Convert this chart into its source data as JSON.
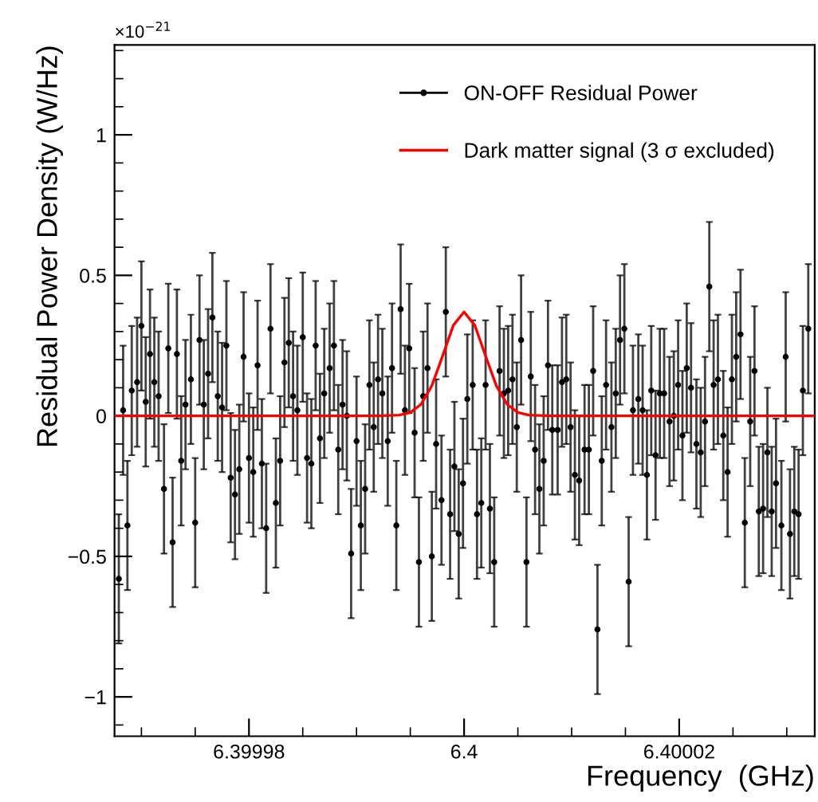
{
  "chart_data": {
    "type": "scatter",
    "xlabel": "Frequency  (GHz)",
    "ylabel": "Residual Power Density (W/Hz)",
    "annotations": [
      "×10$^{−21}$"
    ],
    "xlim": [
      6.3999675,
      6.4000326
    ],
    "ylim": [
      -1.14,
      1.32
    ],
    "xticks": [
      6.39998,
      6.4,
      6.40002
    ],
    "yticks": [
      {
        "value": -1,
        "label": "−1"
      },
      {
        "value": -0.5,
        "label": "−0.5"
      },
      0,
      0.5,
      1
    ],
    "legend": "top right",
    "grid": false,
    "marker": "circle",
    "series": [
      {
        "name": "ON-OFF Residual Power",
        "color": "#000000",
        "x": [
          6.3999679,
          6.3999683,
          6.3999687,
          6.3999691,
          6.3999696,
          6.39997,
          6.3999704,
          6.3999708,
          6.3999712,
          6.3999716,
          6.3999721,
          6.3999725,
          6.3999729,
          6.3999733,
          6.3999737,
          6.3999741,
          6.3999746,
          6.399975,
          6.3999754,
          6.3999758,
          6.3999762,
          6.3999766,
          6.3999771,
          6.3999775,
          6.3999779,
          6.3999783,
          6.3999787,
          6.3999791,
          6.3999795,
          6.39998,
          6.3999804,
          6.3999808,
          6.3999812,
          6.3999816,
          6.399982,
          6.3999825,
          6.3999829,
          6.3999833,
          6.3999837,
          6.3999841,
          6.3999845,
          6.399985,
          6.3999854,
          6.3999858,
          6.3999862,
          6.3999866,
          6.399987,
          6.3999875,
          6.3999879,
          6.3999883,
          6.3999887,
          6.3999891,
          6.3999895,
          6.39999,
          6.3999904,
          6.3999908,
          6.3999912,
          6.3999916,
          6.399992,
          6.3999924,
          6.3999929,
          6.3999933,
          6.3999937,
          6.3999941,
          6.3999945,
          6.3999949,
          6.3999954,
          6.3999958,
          6.3999962,
          6.3999966,
          6.399997,
          6.3999974,
          6.3999979,
          6.3999983,
          6.3999987,
          6.3999991,
          6.3999995,
          6.3999999,
          6.4000003,
          6.4000008,
          6.4000012,
          6.4000016,
          6.400002,
          6.4000024,
          6.4000028,
          6.4000033,
          6.4000037,
          6.4000041,
          6.4000045,
          6.4000049,
          6.4000053,
          6.4000058,
          6.4000062,
          6.4000066,
          6.400007,
          6.4000074,
          6.4000078,
          6.4000082,
          6.4000087,
          6.4000091,
          6.4000095,
          6.4000099,
          6.4000103,
          6.4000107,
          6.4000112,
          6.4000116,
          6.400012,
          6.4000124,
          6.4000128,
          6.4000132,
          6.4000137,
          6.4000141,
          6.4000145,
          6.4000149,
          6.4000153,
          6.4000157,
          6.4000162,
          6.4000166,
          6.400017,
          6.4000174,
          6.4000178,
          6.4000182,
          6.4000186,
          6.4000191,
          6.4000195,
          6.4000199,
          6.4000203,
          6.4000207,
          6.4000211,
          6.4000216,
          6.400022,
          6.4000224,
          6.4000228,
          6.4000232,
          6.4000236,
          6.4000241,
          6.4000245,
          6.4000249,
          6.4000253,
          6.4000257,
          6.4000261,
          6.4000266,
          6.400027,
          6.4000274,
          6.4000278,
          6.4000282,
          6.4000286,
          6.400029,
          6.4000295,
          6.4000299,
          6.4000303,
          6.4000307,
          6.4000311,
          6.4000315,
          6.400032
        ],
        "values": [
          -0.58,
          0.02,
          -0.39,
          0.09,
          0.12,
          0.32,
          0.05,
          0.22,
          0.12,
          0.07,
          -0.26,
          0.24,
          -0.45,
          0.22,
          -0.16,
          0.04,
          0.13,
          -0.38,
          0.27,
          0.04,
          0.15,
          0.35,
          0.07,
          0.03,
          0.25,
          -0.22,
          -0.28,
          -0.19,
          0.21,
          -0.15,
          -0.2,
          0.18,
          -0.17,
          -0.4,
          0.31,
          -0.31,
          -0.16,
          0.19,
          0.26,
          0.07,
          0.02,
          0.28,
          -0.15,
          -0.17,
          0.25,
          -0.08,
          0.08,
          0.17,
          0.25,
          -0.12,
          0.04,
          0.0,
          -0.49,
          -0.09,
          -0.39,
          -0.26,
          0.11,
          -0.04,
          0.13,
          0.08,
          -0.09,
          0.17,
          -0.39,
          0.38,
          0.02,
          0.24,
          -0.06,
          -0.52,
          0.07,
          0.17,
          -0.5,
          -0.1,
          -0.3,
          0.37,
          -0.35,
          -0.18,
          -0.42,
          -0.24,
          0.06,
          0.11,
          -0.35,
          -0.31,
          0.11,
          -0.33,
          -0.52,
          0.16,
          0.08,
          0.09,
          0.13,
          -0.04,
          0.27,
          -0.52,
          0.14,
          -0.12,
          -0.26,
          -0.16,
          0.18,
          -0.05,
          -0.05,
          0.12,
          0.13,
          -0.04,
          -0.21,
          -0.23,
          -0.12,
          -0.12,
          0.16,
          -0.76,
          -0.16,
          0.11,
          -0.04,
          0.08,
          0.27,
          0.31,
          -0.59,
          0.02,
          0.06,
          0.02,
          -0.21,
          0.09,
          -0.14,
          0.08,
          0.08,
          -0.02,
          0.0,
          0.11,
          -0.07,
          0.17,
          0.1,
          -0.1,
          -0.13,
          -0.02,
          0.46,
          0.11,
          0.13,
          -0.07,
          -0.2,
          0.13,
          0.21,
          0.29,
          -0.38,
          -0.02,
          0.16,
          -0.34,
          -0.33,
          -0.13,
          -0.34,
          -0.24,
          -0.39,
          0.21,
          -0.42,
          -0.34,
          -0.35,
          0.09,
          0.31
        ],
        "errors": [
          0.23,
          0.23,
          0.23,
          0.23,
          0.23,
          0.23,
          0.23,
          0.23,
          0.23,
          0.23,
          0.23,
          0.23,
          0.23,
          0.23,
          0.23,
          0.23,
          0.23,
          0.23,
          0.23,
          0.23,
          0.23,
          0.23,
          0.23,
          0.23,
          0.23,
          0.23,
          0.23,
          0.23,
          0.23,
          0.23,
          0.23,
          0.23,
          0.23,
          0.23,
          0.23,
          0.23,
          0.23,
          0.23,
          0.23,
          0.23,
          0.23,
          0.23,
          0.23,
          0.23,
          0.23,
          0.23,
          0.23,
          0.23,
          0.23,
          0.23,
          0.23,
          0.23,
          0.23,
          0.23,
          0.23,
          0.23,
          0.23,
          0.23,
          0.23,
          0.23,
          0.23,
          0.23,
          0.23,
          0.23,
          0.23,
          0.23,
          0.23,
          0.23,
          0.23,
          0.23,
          0.23,
          0.23,
          0.23,
          0.23,
          0.23,
          0.23,
          0.23,
          0.23,
          0.23,
          0.23,
          0.23,
          0.23,
          0.23,
          0.23,
          0.23,
          0.23,
          0.23,
          0.23,
          0.23,
          0.23,
          0.23,
          0.23,
          0.23,
          0.23,
          0.23,
          0.23,
          0.23,
          0.23,
          0.23,
          0.23,
          0.23,
          0.23,
          0.23,
          0.23,
          0.23,
          0.23,
          0.23,
          0.23,
          0.23,
          0.23,
          0.23,
          0.23,
          0.23,
          0.23,
          0.23,
          0.23,
          0.23,
          0.23,
          0.23,
          0.23,
          0.23,
          0.23,
          0.23,
          0.23,
          0.23,
          0.23,
          0.23,
          0.23,
          0.23,
          0.23,
          0.23,
          0.23,
          0.23,
          0.23,
          0.23,
          0.23,
          0.23,
          0.23,
          0.23,
          0.23,
          0.23,
          0.23,
          0.23,
          0.23,
          0.23,
          0.23,
          0.23,
          0.23,
          0.23,
          0.23,
          0.23,
          0.23,
          0.23,
          0.23,
          0.23
        ]
      },
      {
        "name": "Dark matter signal (3 σ excluded)",
        "type": "line",
        "color": "#ff0000",
        "marker": "none",
        "x": [
          6.3999675,
          6.399992,
          6.399994,
          6.399995,
          6.399996,
          6.399997,
          6.399998,
          6.399999,
          6.4,
          6.400001,
          6.400002,
          6.400003,
          6.400004,
          6.400005,
          6.400006,
          6.400008,
          6.4000326
        ],
        "values": [
          0,
          0,
          0.003,
          0.012,
          0.041,
          0.107,
          0.213,
          0.322,
          0.37,
          0.322,
          0.213,
          0.107,
          0.041,
          0.012,
          0.003,
          0,
          0
        ]
      }
    ]
  }
}
